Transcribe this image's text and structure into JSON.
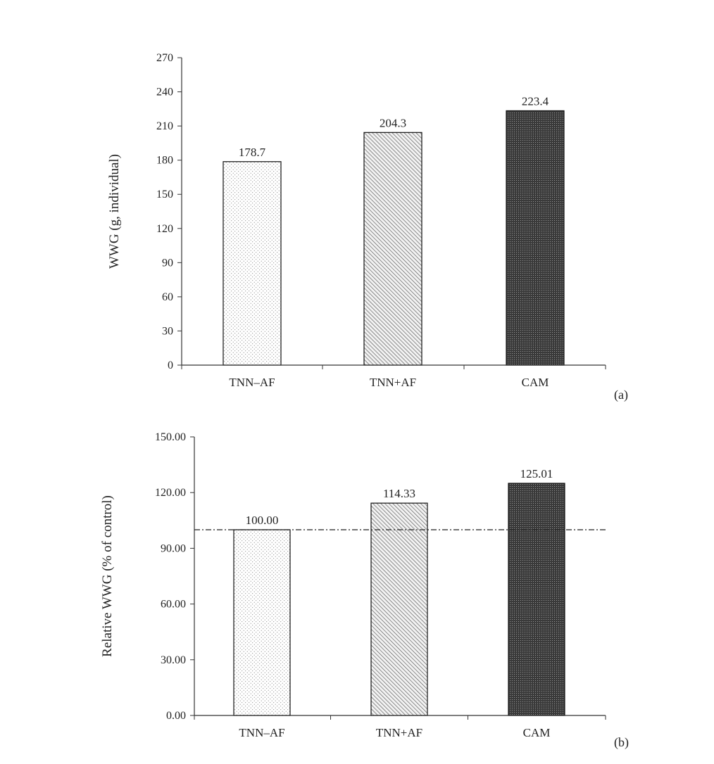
{
  "chart_data": [
    {
      "type": "bar",
      "categories": [
        "TNN–AF",
        "TNN+AF",
        "CAM"
      ],
      "values": [
        178.7,
        204.3,
        223.4
      ],
      "value_labels": [
        "178.7",
        "204.3",
        "223.4"
      ],
      "ylabel": "WWG (g, individual)",
      "ylim": [
        0,
        270
      ],
      "yticks": [
        "0",
        "30",
        "60",
        "90",
        "120",
        "150",
        "180",
        "210",
        "240",
        "270"
      ],
      "panel_label": "(a)",
      "patterns": [
        "dots",
        "diagonal",
        "dense"
      ],
      "grid": false
    },
    {
      "type": "bar",
      "categories": [
        "TNN–AF",
        "TNN+AF",
        "CAM"
      ],
      "values": [
        100.0,
        114.33,
        125.01
      ],
      "value_labels": [
        "100.00",
        "114.33",
        "125.01"
      ],
      "ylabel": "Relative  WWG (% of control)",
      "ylim": [
        0,
        150
      ],
      "yticks": [
        "0.00",
        "30.00",
        "60.00",
        "90.00",
        "120.00",
        "150.00"
      ],
      "reference_line": 100,
      "panel_label": "(b)",
      "patterns": [
        "dots",
        "diagonal",
        "dense"
      ],
      "grid": false
    }
  ]
}
